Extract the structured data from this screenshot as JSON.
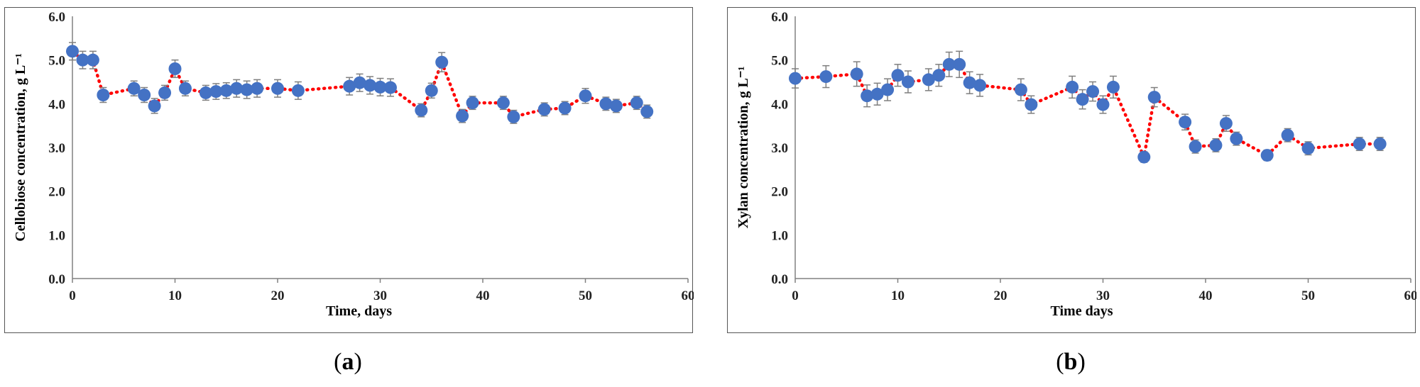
{
  "chart_data": [
    {
      "type": "scatter",
      "panel_label": "a",
      "xlabel": "Time, days",
      "ylabel": "Cellobiose concentration, g L⁻¹",
      "xlim": [
        0,
        60
      ],
      "ylim": [
        0,
        6
      ],
      "xticks": [
        "0",
        "10",
        "20",
        "30",
        "40",
        "50",
        "60"
      ],
      "yticks": [
        "0.0",
        "1.0",
        "2.0",
        "3.0",
        "4.0",
        "5.0",
        "6.0"
      ],
      "grid": false,
      "marker_color": "#4472C4",
      "line_color": "#FF0000",
      "errorbar_color": "#7F7F7F",
      "series": [
        {
          "x": [
            0,
            1,
            2,
            3,
            6,
            7,
            8,
            9,
            10,
            11,
            13,
            14,
            15,
            16,
            17,
            18,
            20,
            22,
            27,
            28,
            29,
            30,
            31,
            34,
            35,
            36,
            38,
            39,
            42,
            43,
            46,
            48,
            50,
            52,
            53,
            55,
            56
          ],
          "y": [
            5.2,
            5.0,
            5.0,
            4.2,
            4.35,
            4.2,
            3.95,
            4.25,
            4.8,
            4.35,
            4.25,
            4.28,
            4.3,
            4.35,
            4.32,
            4.35,
            4.35,
            4.3,
            4.4,
            4.48,
            4.42,
            4.38,
            4.37,
            3.85,
            4.3,
            4.95,
            3.72,
            4.02,
            4.02,
            3.7,
            3.87,
            3.9,
            4.18,
            4.0,
            3.95,
            4.02,
            3.82
          ],
          "error": [
            0.2,
            0.2,
            0.2,
            0.17,
            0.17,
            0.17,
            0.17,
            0.17,
            0.2,
            0.17,
            0.17,
            0.18,
            0.18,
            0.2,
            0.2,
            0.2,
            0.2,
            0.2,
            0.2,
            0.2,
            0.2,
            0.2,
            0.2,
            0.15,
            0.17,
            0.22,
            0.15,
            0.15,
            0.15,
            0.15,
            0.15,
            0.15,
            0.17,
            0.15,
            0.15,
            0.15,
            0.15
          ]
        }
      ]
    },
    {
      "type": "scatter",
      "panel_label": "b",
      "xlabel": "Time days",
      "ylabel": "Xylan concentration, g L⁻¹",
      "xlim": [
        0,
        60
      ],
      "ylim": [
        0,
        6
      ],
      "xticks": [
        "0",
        "10",
        "20",
        "30",
        "40",
        "50",
        "60"
      ],
      "yticks": [
        "0.0",
        "1.0",
        "2.0",
        "3.0",
        "4.0",
        "5.0",
        "6.0"
      ],
      "grid": false,
      "marker_color": "#4472C4",
      "line_color": "#FF0000",
      "errorbar_color": "#7F7F7F",
      "series": [
        {
          "x": [
            0,
            3,
            6,
            7,
            8,
            9,
            10,
            11,
            13,
            14,
            15,
            16,
            17,
            18,
            22,
            23,
            27,
            28,
            29,
            30,
            31,
            34,
            35,
            38,
            39,
            41,
            42,
            43,
            46,
            48,
            50,
            55,
            57
          ],
          "y": [
            4.58,
            4.62,
            4.68,
            4.18,
            4.22,
            4.32,
            4.65,
            4.5,
            4.55,
            4.65,
            4.9,
            4.9,
            4.48,
            4.42,
            4.32,
            3.98,
            4.38,
            4.1,
            4.28,
            3.98,
            4.38,
            2.78,
            4.15,
            3.58,
            3.02,
            3.05,
            3.55,
            3.2,
            2.82,
            3.28,
            2.98,
            3.08,
            3.08
          ],
          "error": [
            0.22,
            0.25,
            0.28,
            0.25,
            0.25,
            0.25,
            0.25,
            0.25,
            0.25,
            0.25,
            0.28,
            0.3,
            0.25,
            0.25,
            0.25,
            0.2,
            0.25,
            0.22,
            0.22,
            0.2,
            0.25,
            0.12,
            0.22,
            0.18,
            0.15,
            0.15,
            0.18,
            0.15,
            0.12,
            0.15,
            0.15,
            0.15,
            0.15
          ]
        }
      ]
    }
  ]
}
